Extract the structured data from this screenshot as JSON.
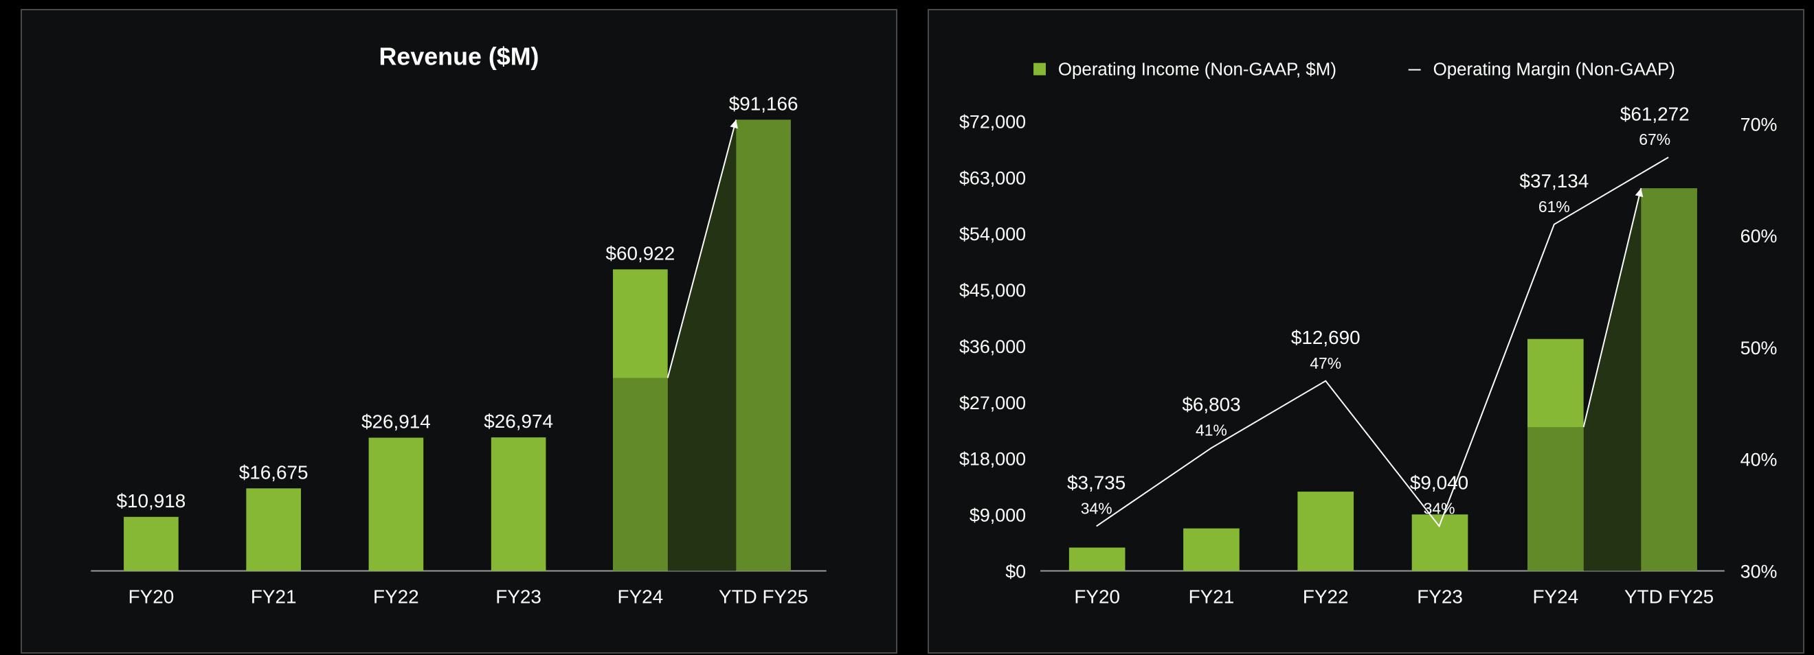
{
  "colors": {
    "bar": "#86b735",
    "bar_dark": "#628a29",
    "growth_fill": "#243313",
    "axis": "#9a9a9a",
    "text": "#ffffff",
    "panel_bg": "#0e0f10",
    "border": "#4a4a4a"
  },
  "chart_data": [
    {
      "type": "bar",
      "title": "Revenue ($M)",
      "categories": [
        "FY20",
        "FY21",
        "FY22",
        "FY23",
        "FY24",
        "YTD FY25"
      ],
      "values": [
        10918,
        16675,
        26914,
        26974,
        60922,
        91166
      ],
      "data_labels": [
        "$10,918",
        "$16,675",
        "$26,914",
        "$26,974",
        "$60,922",
        "$91,166"
      ],
      "ylim": [
        0,
        91166
      ],
      "grid": false,
      "annotation": "growth arrow from FY24 to YTD FY25"
    },
    {
      "type": "bar",
      "title": "",
      "categories": [
        "FY20",
        "FY21",
        "FY22",
        "FY23",
        "FY24",
        "YTD FY25"
      ],
      "series": [
        {
          "name": "Operating Income (Non-GAAP, $M)",
          "type": "bar",
          "values": [
            3735,
            6803,
            12690,
            9040,
            37134,
            61272
          ],
          "data_labels": [
            "$3,735",
            "$6,803",
            "$12,690",
            "$9,040",
            "$37,134",
            "$61,272"
          ]
        },
        {
          "name": "Operating Margin (Non-GAAP)",
          "type": "line",
          "axis": "right",
          "values": [
            34,
            41,
            47,
            34,
            61,
            67
          ],
          "data_labels": [
            "34%",
            "41%",
            "47%",
            "34%",
            "61%",
            "67%"
          ]
        }
      ],
      "left_axis": {
        "ticks": [
          "$0",
          "$9,000",
          "$18,000",
          "$27,000",
          "$36,000",
          "$45,000",
          "$54,000",
          "$63,000",
          "$72,000"
        ],
        "ylim": [
          0,
          81000
        ]
      },
      "right_axis": {
        "ticks": [
          "30%",
          "40%",
          "50%",
          "60%",
          "70%"
        ],
        "ylim": [
          30,
          70
        ]
      },
      "legend_position": "top",
      "grid": false,
      "annotation": "growth arrow from FY24 to YTD FY25"
    }
  ]
}
